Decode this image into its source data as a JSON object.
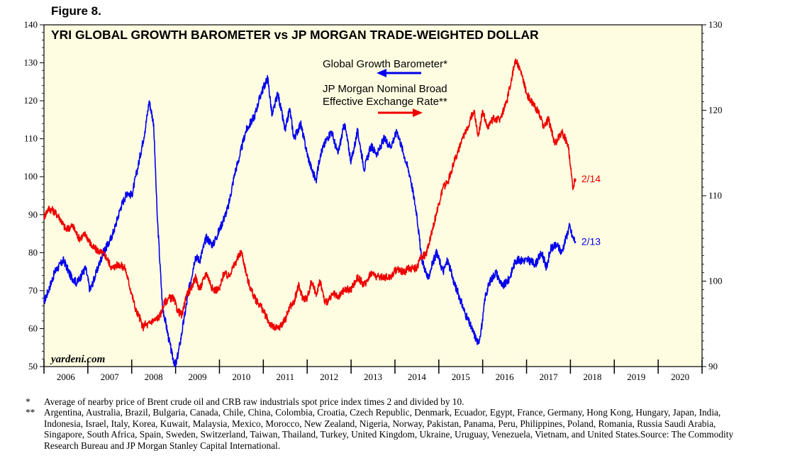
{
  "figure_label": "Figure 8.",
  "footnotes": [
    {
      "mark": "*",
      "text": "Average of nearby price of Brent crude oil and CRB raw industrials spot price index times 2 and divided by 10."
    },
    {
      "mark": "**",
      "text": "Argentina, Australia, Brazil, Bulgaria, Canada, Chile, China, Colombia, Croatia, Czech Republic, Denmark, Ecuador, Egypt, France, Germany, Hong Kong, Hungary, Japan, India, Indonesia, Israel, Italy, Korea, Kuwait, Malaysia, Mexico, Morocco, New Zealand, Nigeria, Norway, Pakistan, Panama, Peru, Philippines, Poland, Romania, Russia Saudi Arabia, Singapore, South Africa, Spain, Sweden, Switzerland, Taiwan, Thailand, Turkey, United Kingdom, Ukraine, Uruguay, Venezuela, Vietnam, and United States.Source: The Commodity Research Bureau and JP Morgan Stanley Capital International."
    }
  ],
  "chart_data": {
    "type": "line",
    "title": "YRI GLOBAL GROWTH BAROMETER vs JP MORGAN TRADE-WEIGHTED DOLLAR",
    "watermark": "yardeni.com",
    "background": "#FFFDE1",
    "x_ticks": [
      "2006",
      "2007",
      "2008",
      "2009",
      "2010",
      "2011",
      "2012",
      "2013",
      "2014",
      "2015",
      "2016",
      "2017",
      "2018",
      "2019",
      "2020"
    ],
    "xlim": [
      2006,
      2021
    ],
    "y_left": {
      "ylim": [
        50,
        140
      ],
      "ticks": [
        50,
        60,
        70,
        80,
        90,
        100,
        110,
        120,
        130,
        140
      ]
    },
    "y_right": {
      "ylim": [
        90,
        130
      ],
      "ticks": [
        90,
        100,
        110,
        120,
        130
      ]
    },
    "legend": [
      {
        "label": "Global Growth Barometer*",
        "color": "#0000EE",
        "arrow": "left"
      },
      {
        "label_lines": [
          "JP Morgan Nominal Broad",
          "Effective Exchange Rate**"
        ],
        "color": "#EE0000",
        "arrow": "right"
      }
    ],
    "series": [
      {
        "name": "Global Growth Barometer*",
        "axis": "left",
        "color": "#0000EE",
        "end_label": "2/13",
        "x": [
          2006.0,
          2006.1,
          2006.25,
          2006.45,
          2006.6,
          2006.75,
          2006.95,
          2007.05,
          2007.2,
          2007.35,
          2007.5,
          2007.6,
          2007.75,
          2007.9,
          2008.0,
          2008.15,
          2008.3,
          2008.4,
          2008.5,
          2008.58,
          2008.7,
          2008.85,
          2008.92,
          2009.0,
          2009.1,
          2009.2,
          2009.3,
          2009.45,
          2009.55,
          2009.7,
          2009.85,
          2010.0,
          2010.2,
          2010.35,
          2010.45,
          2010.6,
          2010.8,
          2010.95,
          2011.1,
          2011.2,
          2011.33,
          2011.5,
          2011.6,
          2011.7,
          2011.85,
          2012.0,
          2012.1,
          2012.2,
          2012.3,
          2012.45,
          2012.55,
          2012.7,
          2012.85,
          2013.0,
          2013.15,
          2013.3,
          2013.45,
          2013.6,
          2013.75,
          2013.9,
          2014.05,
          2014.2,
          2014.35,
          2014.5,
          2014.6,
          2014.75,
          2014.85,
          2014.95,
          2015.1,
          2015.2,
          2015.35,
          2015.45,
          2015.6,
          2015.75,
          2015.9,
          2016.0,
          2016.05,
          2016.15,
          2016.3,
          2016.45,
          2016.6,
          2016.75,
          2016.9,
          2017.05,
          2017.2,
          2017.35,
          2017.45,
          2017.55,
          2017.7,
          2017.8,
          2017.9,
          2017.98,
          2018.05,
          2018.12
        ],
        "y": [
          67,
          70,
          75,
          78,
          74,
          72,
          76,
          70,
          75,
          80,
          83,
          86,
          92,
          96,
          95,
          103,
          112,
          120,
          114,
          90,
          66,
          57,
          53,
          50,
          56,
          63,
          70,
          79,
          78,
          84,
          82,
          86,
          92,
          101,
          105,
          112,
          116,
          122,
          126,
          116,
          122,
          112,
          118,
          110,
          114,
          106,
          102,
          99,
          106,
          110,
          112,
          106,
          114,
          104,
          112,
          102,
          108,
          106,
          110,
          108,
          112,
          106,
          100,
          90,
          79,
          73,
          77,
          80,
          75,
          78,
          72,
          69,
          64,
          60,
          56,
          62,
          68,
          72,
          75,
          71,
          73,
          78,
          78,
          78,
          77,
          80,
          76,
          81,
          82,
          80,
          84,
          87,
          84,
          83
        ]
      },
      {
        "name": "JP Morgan Nominal Broad Effective Exchange Rate**",
        "axis": "right",
        "color": "#EE0000",
        "end_label": "2/14",
        "x": [
          2006.0,
          2006.1,
          2006.2,
          2006.35,
          2006.5,
          2006.65,
          2006.8,
          2006.95,
          2007.1,
          2007.25,
          2007.4,
          2007.55,
          2007.7,
          2007.85,
          2008.0,
          2008.1,
          2008.2,
          2008.25,
          2008.3,
          2008.35,
          2008.45,
          2008.55,
          2008.65,
          2008.75,
          2008.85,
          2008.95,
          2009.05,
          2009.15,
          2009.25,
          2009.35,
          2009.45,
          2009.55,
          2009.7,
          2009.85,
          2010.0,
          2010.1,
          2010.2,
          2010.3,
          2010.4,
          2010.5,
          2010.65,
          2010.8,
          2010.95,
          2011.05,
          2011.15,
          2011.25,
          2011.35,
          2011.5,
          2011.6,
          2011.7,
          2011.8,
          2011.9,
          2012.0,
          2012.1,
          2012.2,
          2012.3,
          2012.4,
          2012.5,
          2012.6,
          2012.7,
          2012.85,
          2013.0,
          2013.15,
          2013.3,
          2013.45,
          2013.6,
          2013.75,
          2013.9,
          2014.05,
          2014.2,
          2014.3,
          2014.4,
          2014.5,
          2014.6,
          2014.7,
          2014.85,
          2015.0,
          2015.1,
          2015.2,
          2015.35,
          2015.5,
          2015.65,
          2015.8,
          2015.9,
          2016.0,
          2016.1,
          2016.25,
          2016.4,
          2016.55,
          2016.65,
          2016.75,
          2016.9,
          2017.0,
          2017.1,
          2017.25,
          2017.4,
          2017.5,
          2017.65,
          2017.8,
          2017.95,
          2018.05,
          2018.12
        ],
        "y": [
          107.5,
          108.5,
          108.3,
          107.5,
          106,
          106.5,
          105,
          105.5,
          104,
          103.5,
          103,
          101.5,
          102,
          101.5,
          98.5,
          96.5,
          95.5,
          94.5,
          95,
          94.8,
          95.3,
          95.5,
          96,
          97.5,
          98,
          98,
          96.5,
          96,
          98.5,
          99,
          100.5,
          99,
          101,
          99,
          99,
          101,
          100.5,
          101.5,
          102.5,
          103.5,
          100,
          98,
          97,
          96,
          95,
          94.5,
          94.5,
          95.5,
          97,
          97.5,
          99.5,
          98,
          98,
          100,
          98.5,
          100,
          97.5,
          97.8,
          98.5,
          98,
          99,
          99,
          100.5,
          99.5,
          101,
          100.5,
          100.5,
          100.5,
          101.5,
          101,
          101.5,
          101.5,
          101.5,
          103,
          103,
          106,
          109,
          111,
          111.5,
          114,
          116,
          118,
          120,
          117,
          120,
          118,
          119,
          119,
          121,
          123.5,
          126,
          124,
          122,
          121,
          120,
          118,
          119,
          116,
          117.5,
          116,
          111,
          112
        ]
      }
    ]
  }
}
